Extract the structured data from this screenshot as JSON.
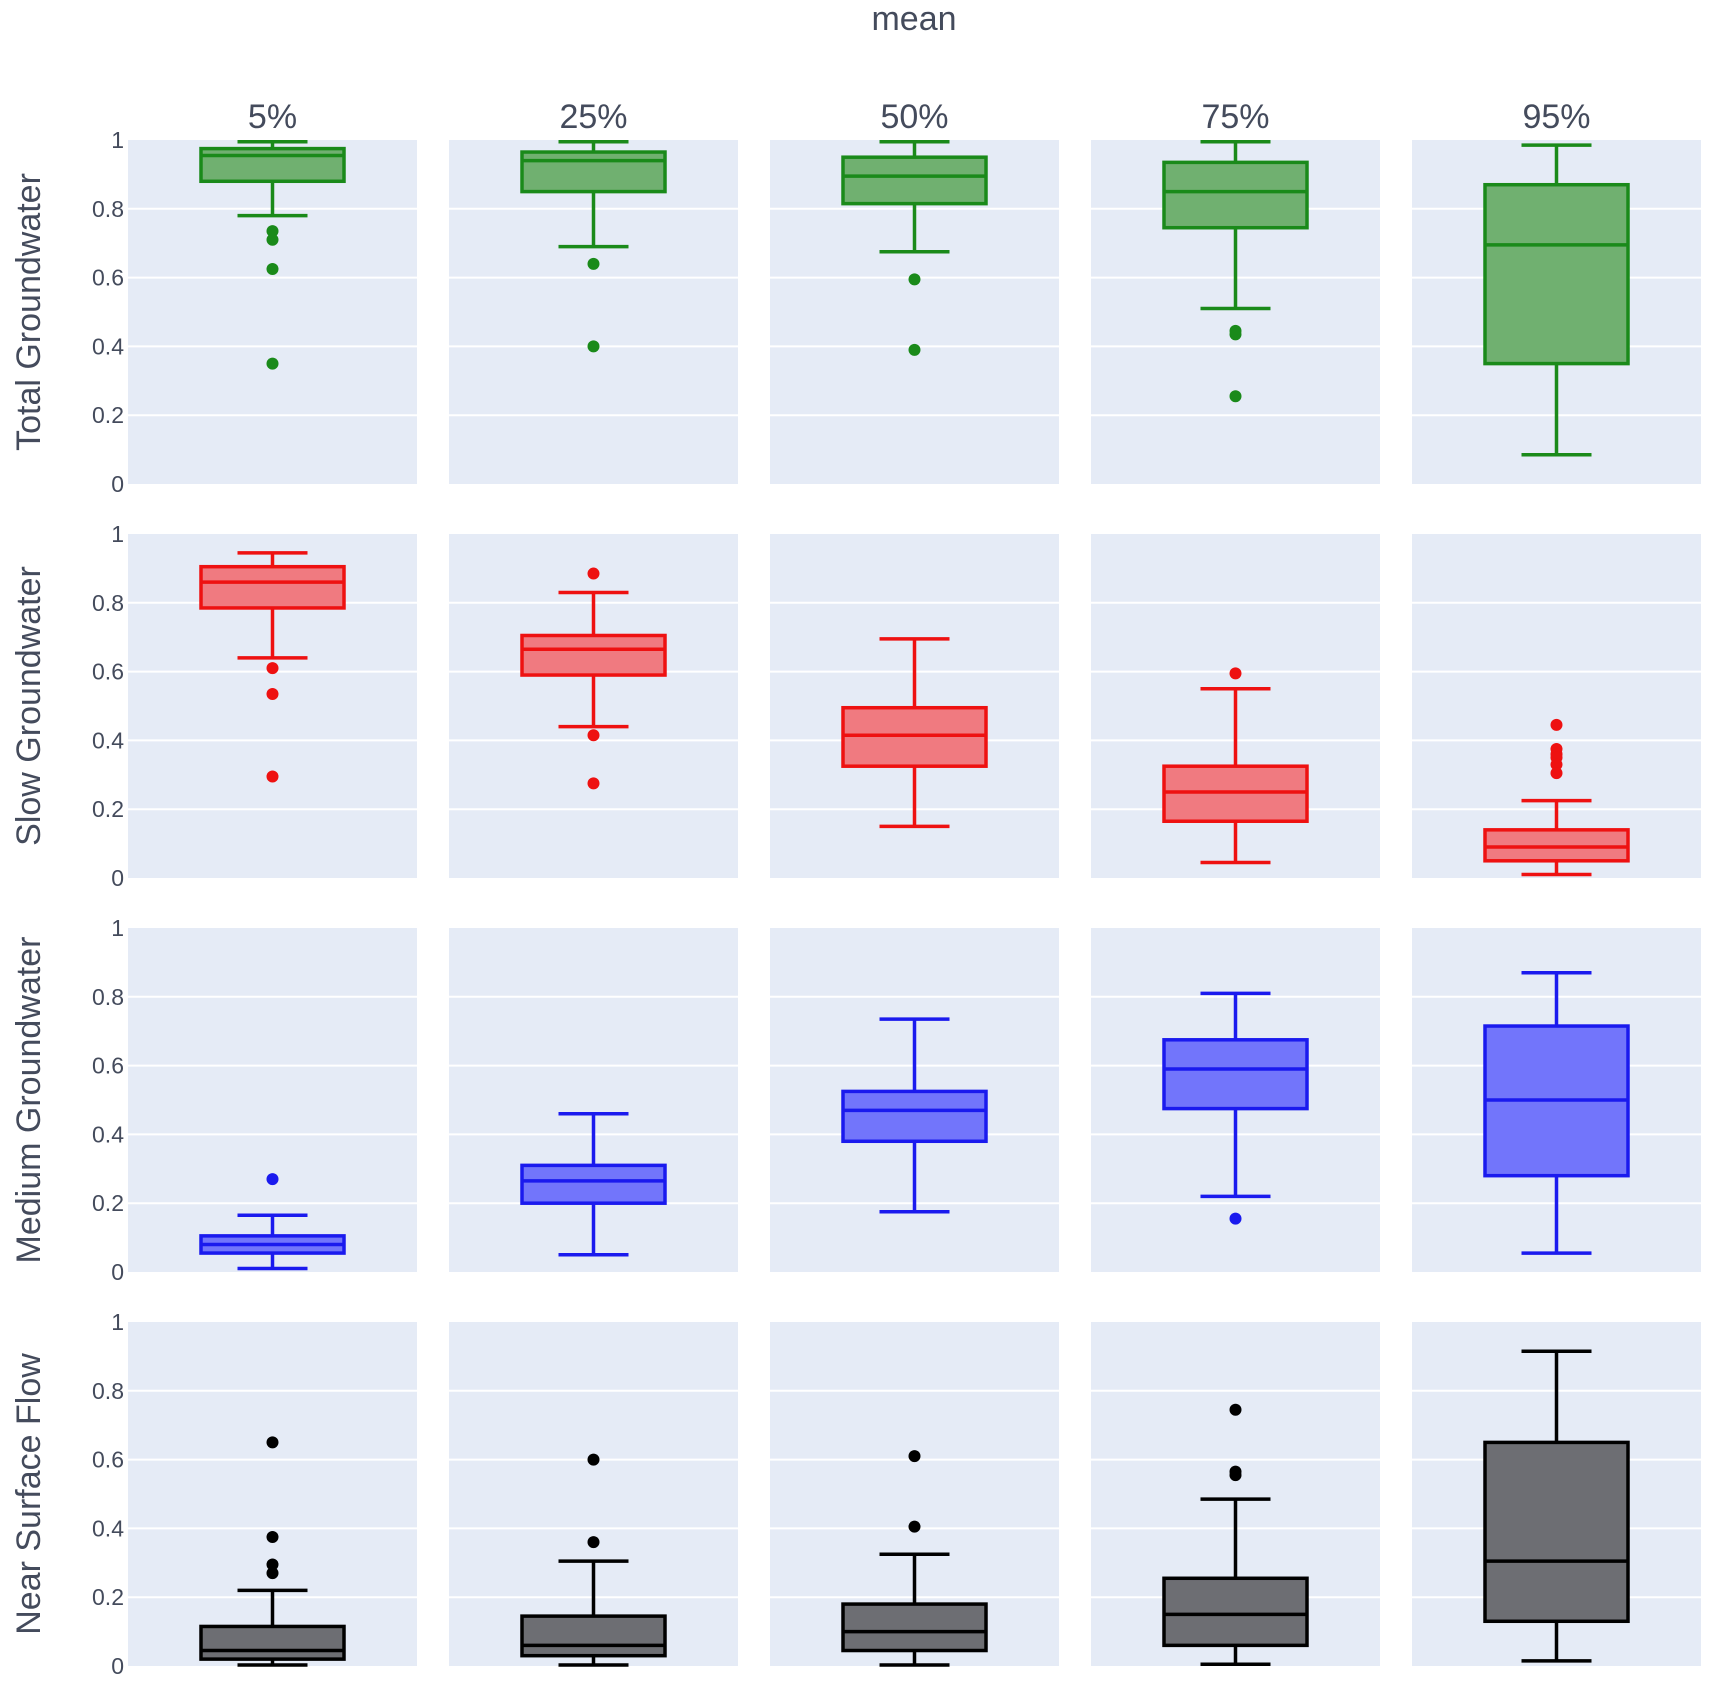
{
  "chart_data": {
    "type": "box",
    "title": "mean",
    "columns": [
      "5%",
      "25%",
      "50%",
      "75%",
      "95%"
    ],
    "y_axis": {
      "range": [
        0,
        1
      ],
      "ticks": [
        0,
        0.2,
        0.4,
        0.6,
        0.8,
        1
      ],
      "tick_labels": [
        "0",
        "0.2",
        "0.4",
        "0.6",
        "0.8",
        "1"
      ],
      "grid": true
    },
    "rows": [
      {
        "name": "Total Groundwater",
        "color": "#1a8a1a",
        "fill": "#70b070",
        "boxes": [
          {
            "column": "5%",
            "lower_fence": 0.78,
            "q1": 0.88,
            "median": 0.955,
            "q3": 0.975,
            "upper_fence": 0.995,
            "outliers": [
              0.735,
              0.71,
              0.625,
              0.35
            ]
          },
          {
            "column": "25%",
            "lower_fence": 0.69,
            "q1": 0.85,
            "median": 0.94,
            "q3": 0.965,
            "upper_fence": 0.995,
            "outliers": [
              0.64,
              0.4
            ]
          },
          {
            "column": "50%",
            "lower_fence": 0.675,
            "q1": 0.815,
            "median": 0.895,
            "q3": 0.95,
            "upper_fence": 0.995,
            "outliers": [
              0.595,
              0.39
            ]
          },
          {
            "column": "75%",
            "lower_fence": 0.51,
            "q1": 0.745,
            "median": 0.85,
            "q3": 0.935,
            "upper_fence": 0.995,
            "outliers": [
              0.445,
              0.435,
              0.255
            ]
          },
          {
            "column": "95%",
            "lower_fence": 0.085,
            "q1": 0.35,
            "median": 0.695,
            "q3": 0.87,
            "upper_fence": 0.985,
            "outliers": []
          }
        ]
      },
      {
        "name": "Slow Groundwater",
        "color": "#ee1111",
        "fill": "#f07a80",
        "boxes": [
          {
            "column": "5%",
            "lower_fence": 0.64,
            "q1": 0.785,
            "median": 0.86,
            "q3": 0.905,
            "upper_fence": 0.945,
            "outliers": [
              0.61,
              0.535,
              0.295
            ]
          },
          {
            "column": "25%",
            "lower_fence": 0.44,
            "q1": 0.59,
            "median": 0.665,
            "q3": 0.705,
            "upper_fence": 0.83,
            "outliers": [
              0.885,
              0.415,
              0.275
            ]
          },
          {
            "column": "50%",
            "lower_fence": 0.15,
            "q1": 0.325,
            "median": 0.415,
            "q3": 0.495,
            "upper_fence": 0.695,
            "outliers": []
          },
          {
            "column": "75%",
            "lower_fence": 0.045,
            "q1": 0.165,
            "median": 0.25,
            "q3": 0.325,
            "upper_fence": 0.55,
            "outliers": [
              0.595
            ]
          },
          {
            "column": "95%",
            "lower_fence": 0.01,
            "q1": 0.05,
            "median": 0.09,
            "q3": 0.14,
            "upper_fence": 0.225,
            "outliers": [
              0.445,
              0.375,
              0.36,
              0.35,
              0.33,
              0.305
            ]
          }
        ]
      },
      {
        "name": "Medium Groundwater",
        "color": "#1a1aee",
        "fill": "#7275fb",
        "boxes": [
          {
            "column": "5%",
            "lower_fence": 0.01,
            "q1": 0.055,
            "median": 0.08,
            "q3": 0.105,
            "upper_fence": 0.165,
            "outliers": [
              0.27
            ]
          },
          {
            "column": "25%",
            "lower_fence": 0.05,
            "q1": 0.2,
            "median": 0.265,
            "q3": 0.31,
            "upper_fence": 0.46,
            "outliers": []
          },
          {
            "column": "50%",
            "lower_fence": 0.175,
            "q1": 0.38,
            "median": 0.47,
            "q3": 0.525,
            "upper_fence": 0.735,
            "outliers": []
          },
          {
            "column": "75%",
            "lower_fence": 0.22,
            "q1": 0.475,
            "median": 0.59,
            "q3": 0.675,
            "upper_fence": 0.81,
            "outliers": [
              0.155
            ]
          },
          {
            "column": "95%",
            "lower_fence": 0.055,
            "q1": 0.28,
            "median": 0.5,
            "q3": 0.715,
            "upper_fence": 0.87,
            "outliers": []
          }
        ]
      },
      {
        "name": "Near Surface Flow",
        "color": "#000000",
        "fill": "#6d6e73",
        "boxes": [
          {
            "column": "5%",
            "lower_fence": 0.003,
            "q1": 0.02,
            "median": 0.045,
            "q3": 0.115,
            "upper_fence": 0.22,
            "outliers": [
              0.65,
              0.375,
              0.295,
              0.27
            ]
          },
          {
            "column": "25%",
            "lower_fence": 0.003,
            "q1": 0.03,
            "median": 0.06,
            "q3": 0.145,
            "upper_fence": 0.305,
            "outliers": [
              0.6,
              0.36
            ]
          },
          {
            "column": "50%",
            "lower_fence": 0.003,
            "q1": 0.045,
            "median": 0.1,
            "q3": 0.18,
            "upper_fence": 0.325,
            "outliers": [
              0.61,
              0.405
            ]
          },
          {
            "column": "75%",
            "lower_fence": 0.005,
            "q1": 0.06,
            "median": 0.15,
            "q3": 0.255,
            "upper_fence": 0.485,
            "outliers": [
              0.745,
              0.565,
              0.555
            ]
          },
          {
            "column": "95%",
            "lower_fence": 0.015,
            "q1": 0.13,
            "median": 0.305,
            "q3": 0.65,
            "upper_fence": 0.915,
            "outliers": []
          }
        ]
      }
    ]
  }
}
